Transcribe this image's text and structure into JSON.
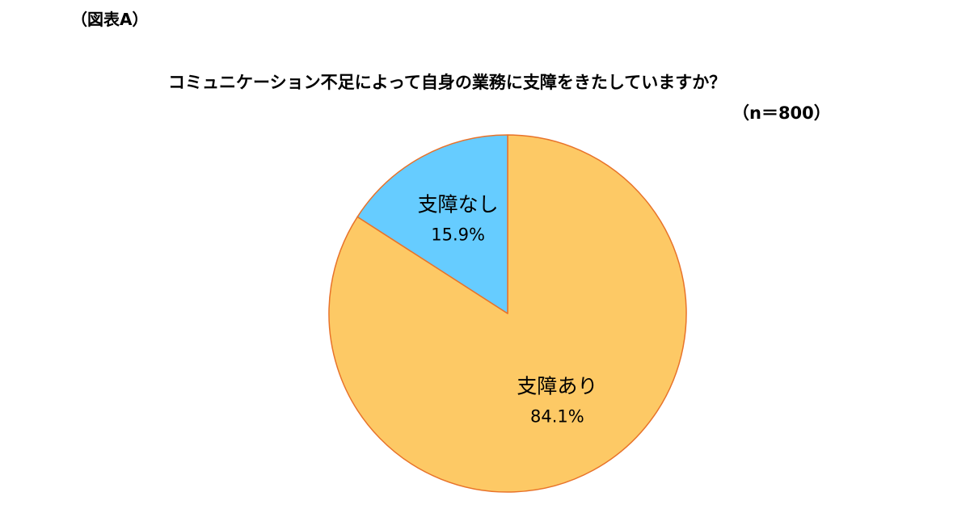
{
  "figure_label": "（図表A）",
  "chart_data": {
    "type": "pie",
    "title": "コミュニケーション不足によって自身の業務に支障をきたしていますか？",
    "sample_size": "（n＝800）",
    "slices": [
      {
        "label": "支障あり",
        "value": 84.1,
        "value_label": "84.1%",
        "color": "#FDC965"
      },
      {
        "label": "支障なし",
        "value": 15.9,
        "value_label": "15.9%",
        "color": "#66CCFF"
      }
    ],
    "edge_color": "#E8732A",
    "start_angle_deg": 0,
    "direction": "clockwise"
  }
}
